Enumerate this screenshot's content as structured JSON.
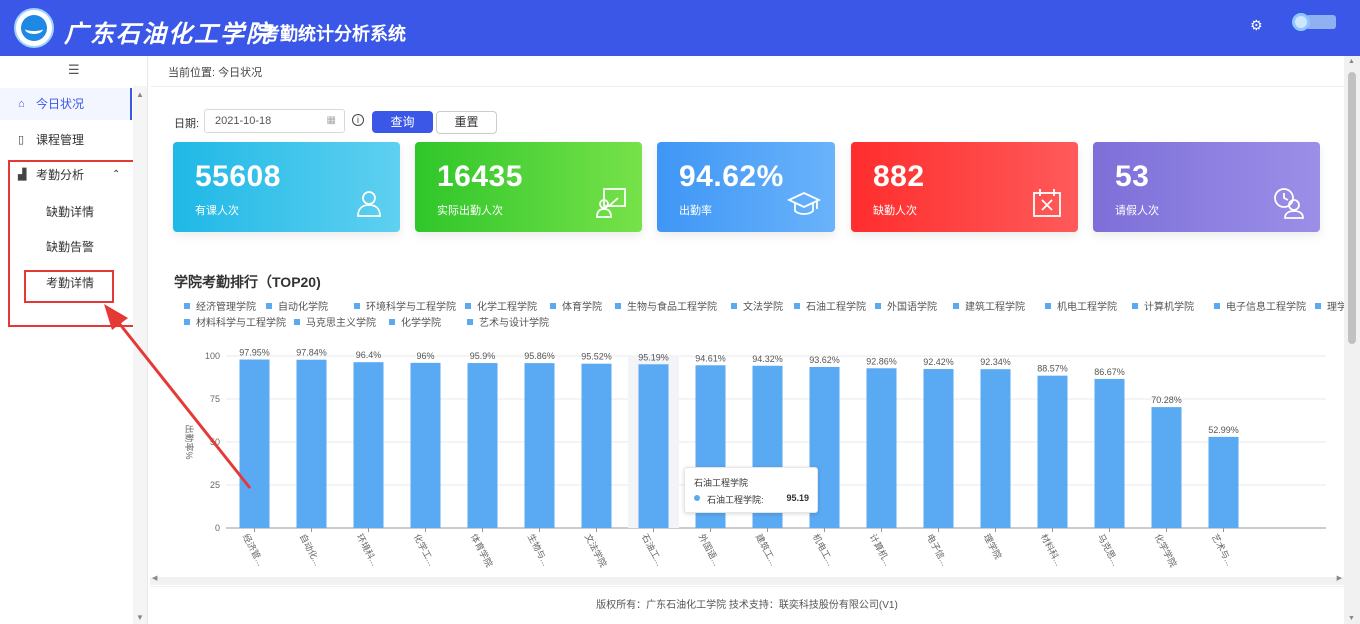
{
  "header": {
    "school_name": "广东石油化工学院",
    "system_title": "考勤统计分析系统",
    "settings_icon": "gear-icon",
    "colors": {
      "header_bg": "#3a57e8"
    }
  },
  "sidebar": {
    "collapse_glyph": "☰",
    "items": [
      {
        "label": "今日状况",
        "icon": "home-icon",
        "active": true
      },
      {
        "label": "课程管理",
        "icon": "book-icon"
      },
      {
        "label": "考勤分析",
        "icon": "bar-chart-icon",
        "expanded": true,
        "children": [
          {
            "label": "缺勤详情"
          },
          {
            "label": "缺勤告警"
          },
          {
            "label": "考勤详情"
          }
        ]
      }
    ]
  },
  "breadcrumb": "当前位置: 今日状况",
  "filter": {
    "date_label": "日期:",
    "date_value": "2021-10-18",
    "query_label": "查询",
    "reset_label": "重置"
  },
  "cards": [
    {
      "value": "55608",
      "label": "有课人次",
      "icon": "user-icon",
      "color": "#1fb8e6"
    },
    {
      "value": "16435",
      "label": "实际出勤人次",
      "icon": "attendance-board-icon",
      "color": "#2fc62a"
    },
    {
      "value": "94.62%",
      "label": "出勤率",
      "icon": "graduation-cap-icon",
      "color": "#3e96f5"
    },
    {
      "value": "882",
      "label": "缺勤人次",
      "icon": "calendar-x-icon",
      "color": "#ff2d2d"
    },
    {
      "value": "53",
      "label": "请假人次",
      "icon": "user-clock-icon",
      "color": "#7d6fd8"
    }
  ],
  "chart_title": "学院考勤排行（TOP20)",
  "legend": [
    "经济管理学院",
    "自动化学院",
    "环境科学与工程学院",
    "化学工程学院",
    "体育学院",
    "生物与食品工程学院",
    "文法学院",
    "石油工程学院",
    "外国语学院",
    "建筑工程学院",
    "机电工程学院",
    "计算机学院",
    "电子信息工程学院",
    "理学院",
    "材料科学与工程学院",
    "马克思主义学院",
    "化学学院",
    "艺术与设计学院"
  ],
  "chart_data": {
    "type": "bar",
    "title": "学院考勤排行（TOP20)",
    "ylabel": "出勤率%",
    "ylim": [
      0,
      100
    ],
    "yticks": [
      0,
      25,
      50,
      75,
      100
    ],
    "grid": true,
    "categories": [
      "经济管...",
      "自动化...",
      "环境科...",
      "化学工...",
      "体育学院",
      "生物与...",
      "文法学院",
      "石油工...",
      "外国语...",
      "建筑工...",
      "机电工...",
      "计算机...",
      "电子信...",
      "理学院",
      "材料科...",
      "马克思...",
      "化学学院",
      "艺术与..."
    ],
    "values": [
      97.95,
      97.84,
      96.4,
      96,
      95.9,
      95.86,
      95.52,
      95.19,
      94.61,
      94.32,
      93.62,
      92.86,
      92.42,
      92.34,
      88.57,
      86.67,
      70.28,
      52.99
    ],
    "value_labels": [
      "97.95%",
      "97.84%",
      "96.4%",
      "96%",
      "95.9%",
      "95.86%",
      "95.52%",
      "95.19%",
      "94.61%",
      "94.32%",
      "93.62%",
      "92.86%",
      "92.42%",
      "92.34%",
      "88.57%",
      "86.67%",
      "70.28%",
      "52.99%"
    ],
    "bar_color": "#5aa9f3",
    "highlighted_index": 7
  },
  "tooltip": {
    "title": "石油工程学院",
    "name": "石油工程学院:",
    "value": "95.19"
  },
  "footer": "版权所有：广东石油化工学院 技术支持：联奕科技股份有限公司(V1)"
}
